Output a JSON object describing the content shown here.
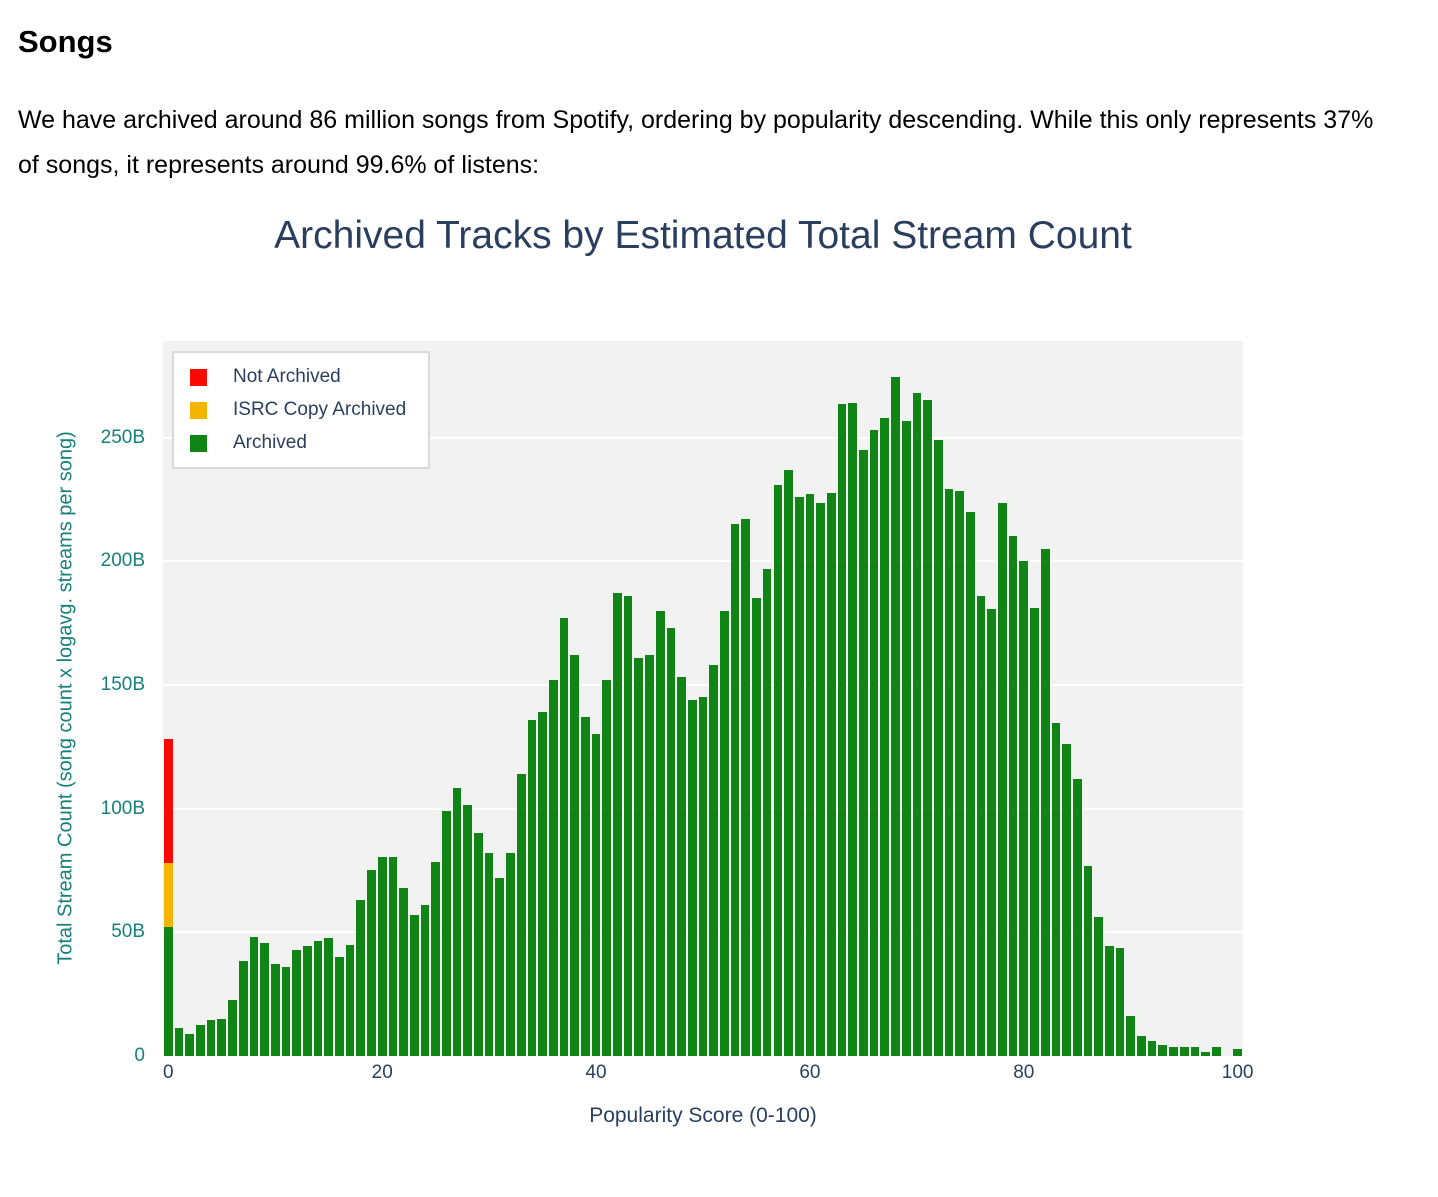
{
  "page": {
    "heading": "Songs",
    "paragraph": "We have archived around 86 million songs from Spotify, ordering by popularity descending. While this only represents 37% of songs, it represents around 99.6% of listens:"
  },
  "chart_data": {
    "type": "bar",
    "stacked": true,
    "title": "Archived Tracks by Estimated Total Stream Count",
    "xlabel": "Popularity Score (0-100)",
    "ylabel": "Total Stream Count (song count x logavg. streams per song)",
    "x_min": 0,
    "x_max": 100,
    "x_count": 101,
    "ylim": [
      0,
      289
    ],
    "unit": "billions of streams",
    "grid": true,
    "legend_position": "top-left",
    "colors": {
      "not_archived_red": "#fa0802",
      "isrc_gold": "#f4b502",
      "archived_green": "#108414",
      "title_navy": "#2a3f5f",
      "axis_teal": "#178079",
      "plot_background": "#f2f2f2",
      "gridline_white": "#ffffff",
      "legend_border": "#d9d9d9"
    },
    "yticks": [
      {
        "v": 0,
        "label": "0"
      },
      {
        "v": 50,
        "label": "50B"
      },
      {
        "v": 100,
        "label": "100B"
      },
      {
        "v": 150,
        "label": "150B"
      },
      {
        "v": 200,
        "label": "200B"
      },
      {
        "v": 250,
        "label": "250B"
      }
    ],
    "xticks": [
      {
        "v": 0,
        "label": "0"
      },
      {
        "v": 20,
        "label": "20"
      },
      {
        "v": 40,
        "label": "40"
      },
      {
        "v": 60,
        "label": "60"
      },
      {
        "v": 80,
        "label": "80"
      },
      {
        "v": 100,
        "label": "100"
      }
    ],
    "series": [
      {
        "name": "Not Archived",
        "color": "#fa0802",
        "values_by_pop": {
          "0": 50
        }
      },
      {
        "name": "ISRC Copy Archived",
        "color": "#f4b502",
        "values_by_pop": {
          "0": 26
        }
      },
      {
        "name": "Archived",
        "color": "#108414",
        "values": [
          52,
          11.5,
          9,
          12.5,
          14.5,
          15,
          22.5,
          38.5,
          48,
          45.5,
          37,
          36,
          43,
          44.5,
          46.5,
          47.5,
          40,
          45,
          63,
          75,
          80.5,
          80.5,
          68,
          57,
          61,
          78.5,
          99,
          108.5,
          101.5,
          90,
          82,
          72,
          82,
          114,
          136,
          139,
          152,
          177,
          162,
          137,
          130,
          152,
          187,
          186,
          161,
          162,
          180,
          173,
          153,
          144,
          145,
          158,
          180,
          215,
          217,
          185,
          197,
          231,
          237,
          226,
          227,
          223.5,
          227.5,
          263.5,
          264,
          245,
          253,
          258,
          274.5,
          256.5,
          268,
          265,
          249,
          229,
          228.5,
          220,
          186,
          180.5,
          223.5,
          210,
          200,
          181,
          205,
          134.5,
          126,
          112,
          77,
          56,
          44.5,
          43.5,
          16,
          8,
          6,
          4.5,
          3.8,
          3.5,
          3.5,
          1.6,
          3.8,
          0,
          2.7
        ]
      }
    ]
  }
}
